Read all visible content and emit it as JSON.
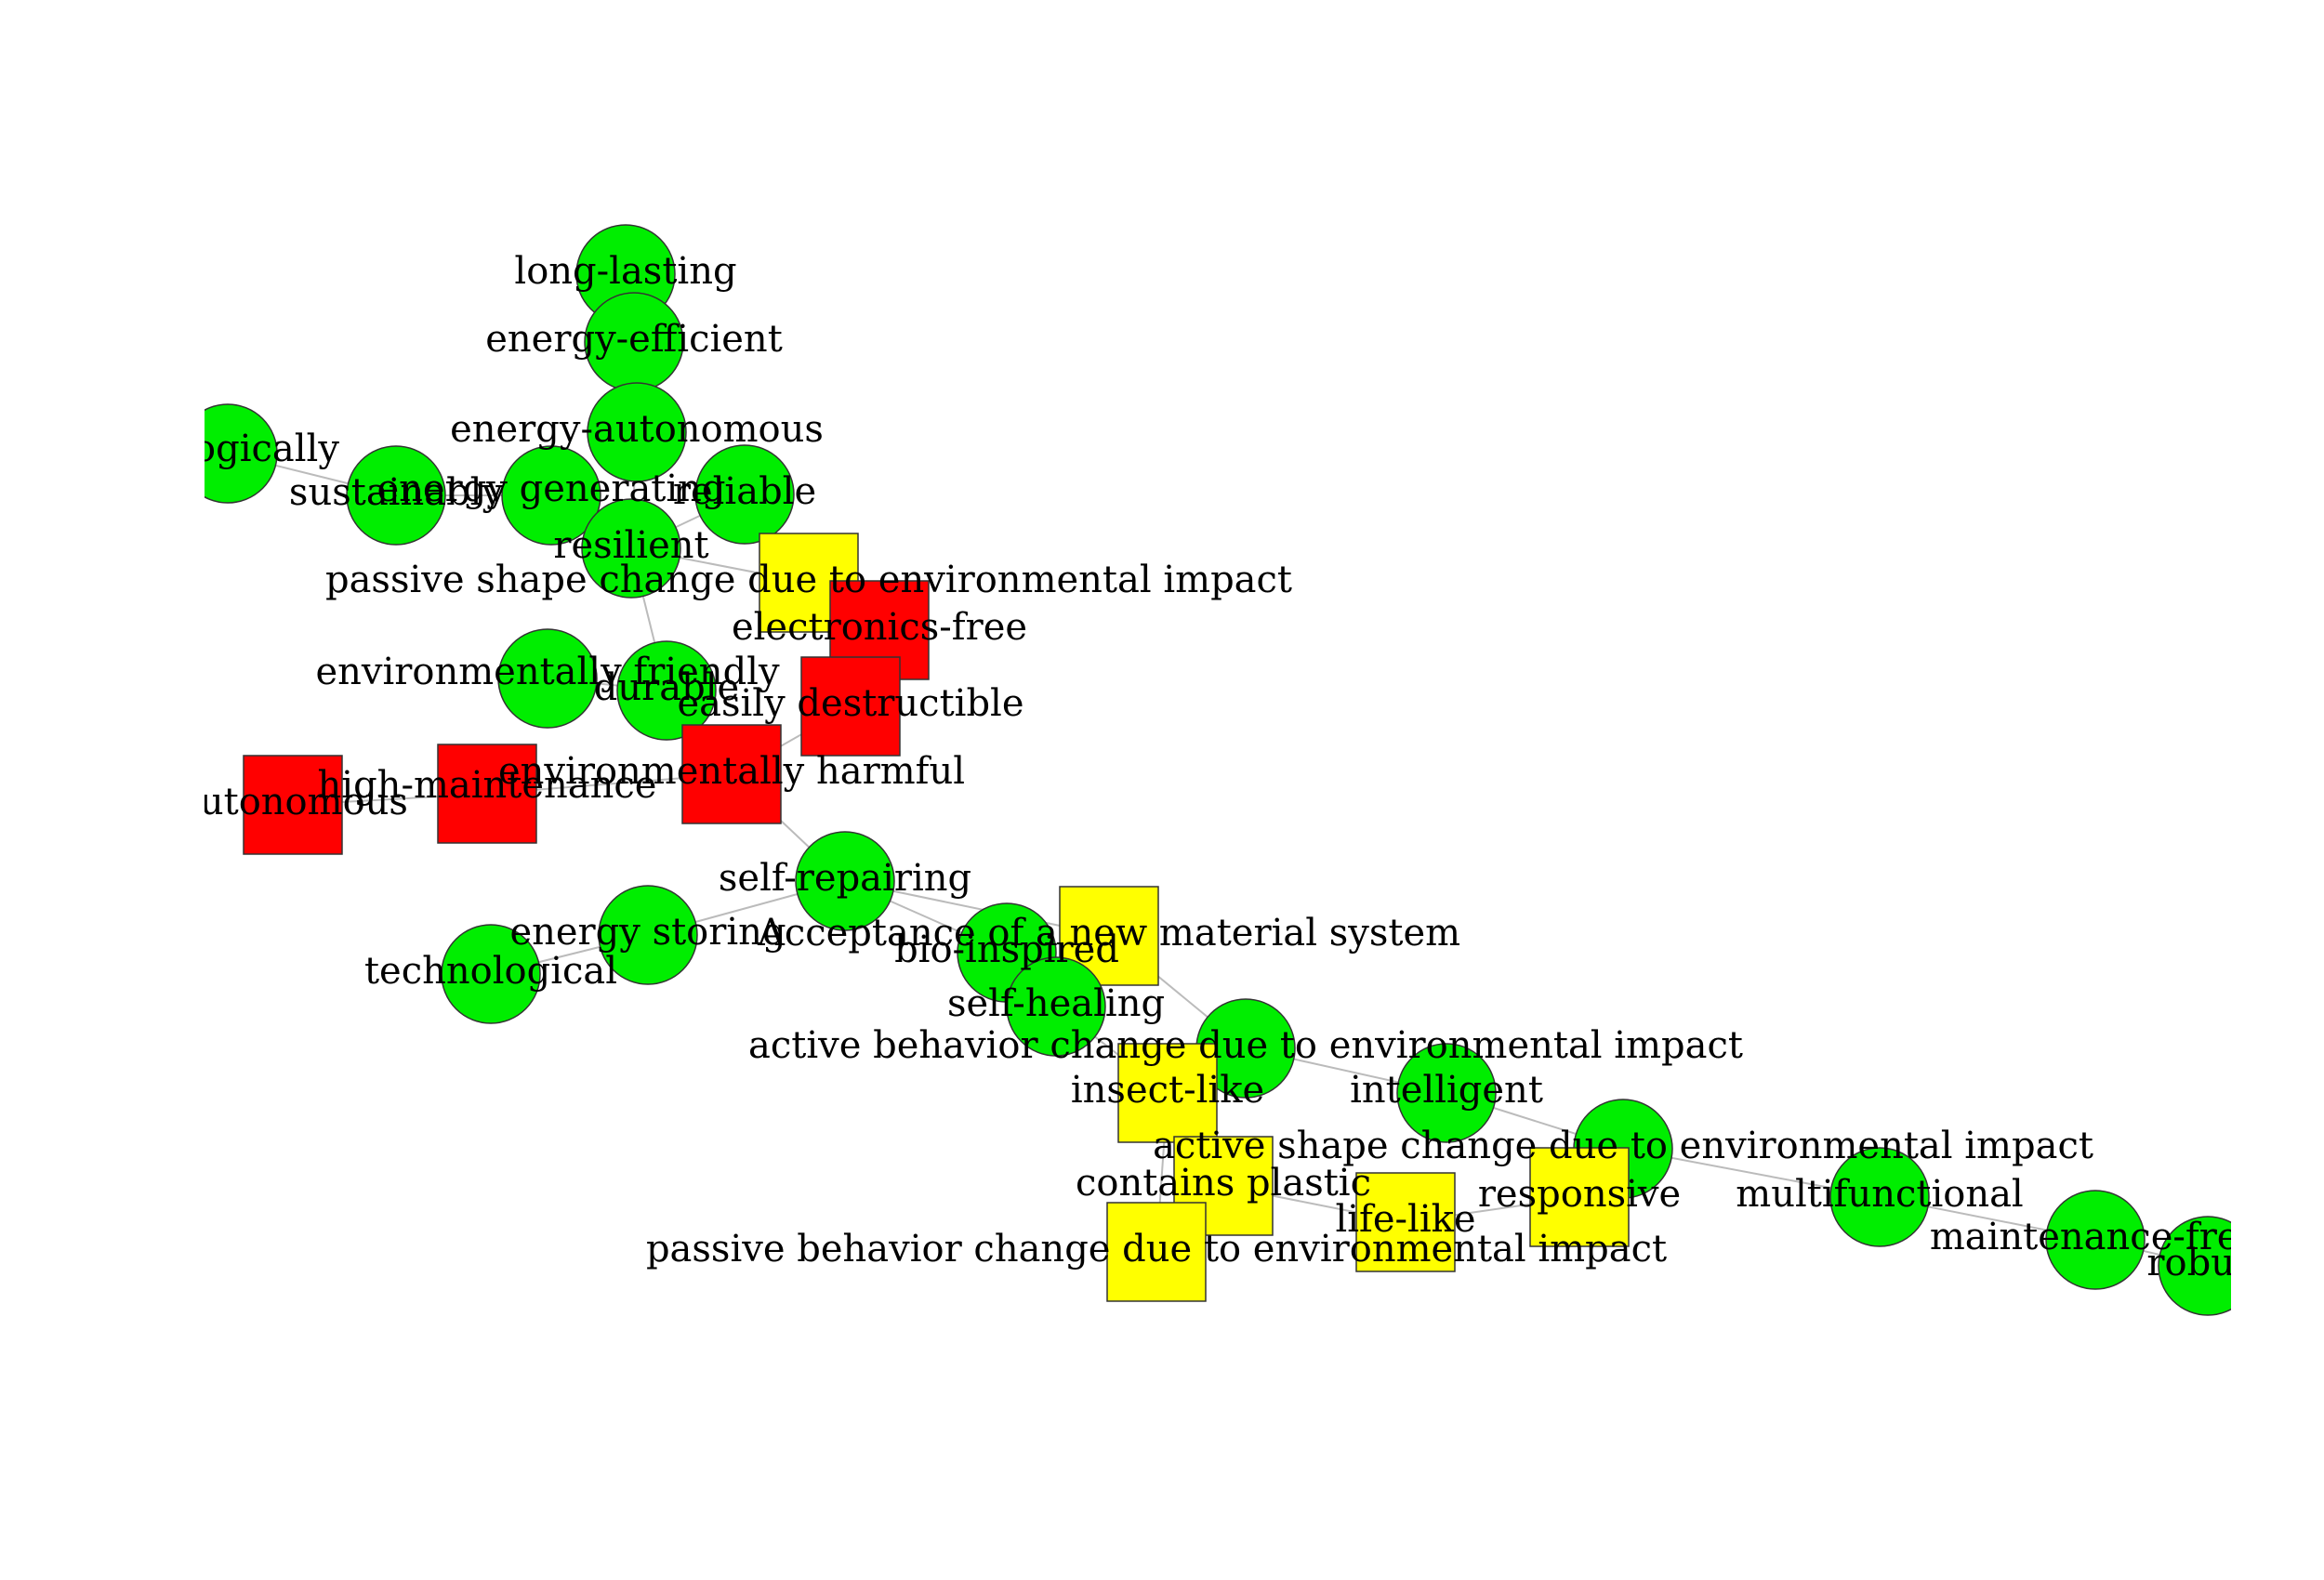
{
  "graph": {
    "colors": {
      "circle_fill": "#00ee00",
      "red_square_fill": "#ff0000",
      "yellow_square_fill": "#ffff00",
      "node_stroke": "#333333",
      "edge": "#bbbbbb",
      "background": "#ffffff"
    },
    "nodes": [
      {
        "id": "long-lasting",
        "label": "long-lasting",
        "shape": "circle",
        "color": "green"
      },
      {
        "id": "energy-efficient",
        "label": "energy-efficient",
        "shape": "circle",
        "color": "green"
      },
      {
        "id": "energy-autonomous",
        "label": "energy-autonomous",
        "shape": "circle",
        "color": "green"
      },
      {
        "id": "ecologically",
        "label": "ecologically",
        "shape": "circle",
        "color": "green"
      },
      {
        "id": "sustainably",
        "label": "sustainably",
        "shape": "circle",
        "color": "green"
      },
      {
        "id": "energy-generating",
        "label": "energy generating",
        "shape": "circle",
        "color": "green"
      },
      {
        "id": "reliable",
        "label": "reliable",
        "shape": "circle",
        "color": "green"
      },
      {
        "id": "resilient",
        "label": "resilient",
        "shape": "circle",
        "color": "green"
      },
      {
        "id": "passive-shape-change",
        "label": "passive shape change due to environmental impact",
        "shape": "square",
        "color": "yellow"
      },
      {
        "id": "electronics-free",
        "label": "electronics-free",
        "shape": "square",
        "color": "red"
      },
      {
        "id": "environmentally-friendly",
        "label": "environmentally friendly",
        "shape": "circle",
        "color": "green"
      },
      {
        "id": "durable",
        "label": "durable",
        "shape": "circle",
        "color": "green"
      },
      {
        "id": "easily-destructible",
        "label": "easily destructible",
        "shape": "square",
        "color": "red"
      },
      {
        "id": "environmentally-harmful",
        "label": "environmentally harmful",
        "shape": "square",
        "color": "red"
      },
      {
        "id": "autonomous",
        "label": "autonomous",
        "shape": "square",
        "color": "red"
      },
      {
        "id": "high-maintenance",
        "label": "high-maintenance",
        "shape": "square",
        "color": "red"
      },
      {
        "id": "self-repairing",
        "label": "self-repairing",
        "shape": "circle",
        "color": "green"
      },
      {
        "id": "energy-storing",
        "label": "energy storing",
        "shape": "circle",
        "color": "green"
      },
      {
        "id": "technological",
        "label": "technological",
        "shape": "circle",
        "color": "green"
      },
      {
        "id": "acceptance",
        "label": "Acceptance of a new material system",
        "shape": "square",
        "color": "yellow"
      },
      {
        "id": "bio-inspired",
        "label": "bio-inspired",
        "shape": "circle",
        "color": "green"
      },
      {
        "id": "self-healing",
        "label": "self-healing",
        "shape": "circle",
        "color": "green"
      },
      {
        "id": "active-behavior-change",
        "label": "active behavior change due to environmental impact",
        "shape": "circle",
        "color": "green"
      },
      {
        "id": "insect-like",
        "label": "insect-like",
        "shape": "square",
        "color": "yellow"
      },
      {
        "id": "intelligent",
        "label": "intelligent",
        "shape": "circle",
        "color": "green"
      },
      {
        "id": "active-shape-change",
        "label": "active shape change due to environmental impact",
        "shape": "circle",
        "color": "green"
      },
      {
        "id": "contains-plastic",
        "label": "contains plastic",
        "shape": "square",
        "color": "yellow"
      },
      {
        "id": "responsive",
        "label": "responsive",
        "shape": "square",
        "color": "yellow"
      },
      {
        "id": "multifunctional",
        "label": "multifunctional",
        "shape": "circle",
        "color": "green"
      },
      {
        "id": "life-like",
        "label": "life-like",
        "shape": "square",
        "color": "yellow"
      },
      {
        "id": "passive-behavior-change",
        "label": "passive behavior change due to environmental impact",
        "shape": "square",
        "color": "yellow"
      },
      {
        "id": "maintenance-free",
        "label": "maintenance-free",
        "shape": "circle",
        "color": "green"
      },
      {
        "id": "robust",
        "label": "robust",
        "shape": "circle",
        "color": "green"
      }
    ],
    "edges": [
      {
        "source": "ecologically",
        "target": "sustainably"
      },
      {
        "source": "sustainably",
        "target": "energy-generating"
      },
      {
        "source": "energy-generating",
        "target": "resilient"
      },
      {
        "source": "long-lasting",
        "target": "energy-efficient"
      },
      {
        "source": "energy-efficient",
        "target": "energy-autonomous"
      },
      {
        "source": "energy-autonomous",
        "target": "resilient"
      },
      {
        "source": "reliable",
        "target": "resilient"
      },
      {
        "source": "resilient",
        "target": "passive-shape-change"
      },
      {
        "source": "resilient",
        "target": "durable"
      },
      {
        "source": "environmentally-friendly",
        "target": "durable"
      },
      {
        "source": "durable",
        "target": "environmentally-harmful"
      },
      {
        "source": "electronics-free",
        "target": "easily-destructible"
      },
      {
        "source": "easily-destructible",
        "target": "environmentally-harmful"
      },
      {
        "source": "autonomous",
        "target": "high-maintenance"
      },
      {
        "source": "high-maintenance",
        "target": "environmentally-harmful"
      },
      {
        "source": "environmentally-harmful",
        "target": "self-repairing"
      },
      {
        "source": "technological",
        "target": "energy-storing"
      },
      {
        "source": "energy-storing",
        "target": "self-repairing"
      },
      {
        "source": "self-repairing",
        "target": "bio-inspired"
      },
      {
        "source": "self-repairing",
        "target": "acceptance"
      },
      {
        "source": "acceptance",
        "target": "active-behavior-change"
      },
      {
        "source": "bio-inspired",
        "target": "self-healing"
      },
      {
        "source": "self-healing",
        "target": "insect-like"
      },
      {
        "source": "active-behavior-change",
        "target": "intelligent"
      },
      {
        "source": "intelligent",
        "target": "active-shape-change"
      },
      {
        "source": "insect-like",
        "target": "contains-plastic"
      },
      {
        "source": "insect-like",
        "target": "passive-behavior-change"
      },
      {
        "source": "contains-plastic",
        "target": "life-like"
      },
      {
        "source": "life-like",
        "target": "responsive"
      },
      {
        "source": "responsive",
        "target": "active-shape-change"
      },
      {
        "source": "active-shape-change",
        "target": "multifunctional"
      },
      {
        "source": "multifunctional",
        "target": "maintenance-free"
      },
      {
        "source": "maintenance-free",
        "target": "robust"
      }
    ]
  }
}
